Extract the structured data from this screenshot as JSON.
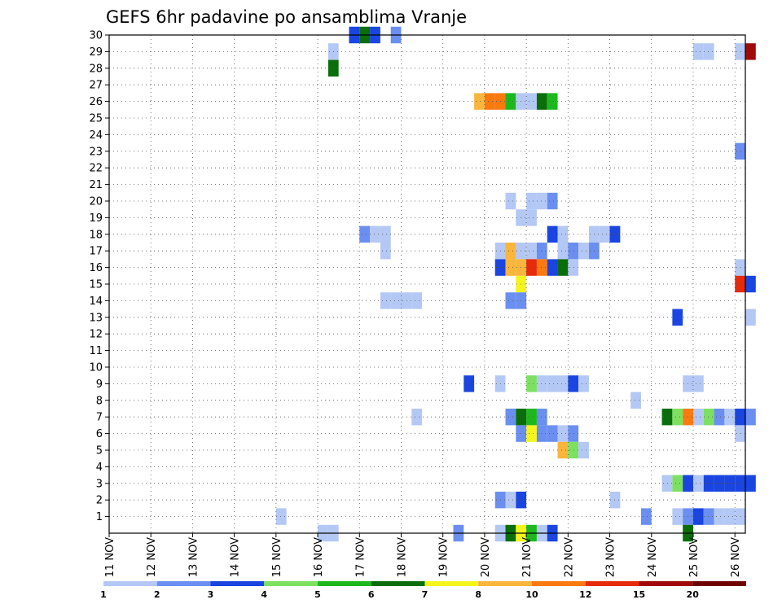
{
  "chart_data": {
    "type": "heatmap",
    "title": "GEFS 6hr padavine po ansamblima Vranje",
    "xlabel": "",
    "ylabel": "",
    "x_range_steps": [
      0,
      61
    ],
    "x_ticks": [
      {
        "label": "11 NOV",
        "step": 0
      },
      {
        "label": "12 NOV",
        "step": 4
      },
      {
        "label": "13 NOV",
        "step": 8
      },
      {
        "label": "14 NOV",
        "step": 12
      },
      {
        "label": "15 NOV",
        "step": 16
      },
      {
        "label": "16 NOV",
        "step": 20
      },
      {
        "label": "17 NOV",
        "step": 24
      },
      {
        "label": "18 NOV",
        "step": 28
      },
      {
        "label": "19 NOV",
        "step": 32
      },
      {
        "label": "20 NOV",
        "step": 36
      },
      {
        "label": "21 NOV",
        "step": 40
      },
      {
        "label": "22 NOV",
        "step": 44
      },
      {
        "label": "23 NOV",
        "step": 48
      },
      {
        "label": "24 NOV",
        "step": 52
      },
      {
        "label": "25 NOV",
        "step": 56
      },
      {
        "label": "26 NOV",
        "step": 60
      }
    ],
    "y_ticks": [
      "1",
      "2",
      "3",
      "4",
      "5",
      "6",
      "7",
      "8",
      "9",
      "10",
      "11",
      "12",
      "13",
      "14",
      "15",
      "16",
      "17",
      "18",
      "19",
      "20",
      "21",
      "22",
      "23",
      "24",
      "25",
      "26",
      "27",
      "28",
      "29",
      "30"
    ],
    "y_range": [
      0,
      30
    ],
    "grid": true,
    "colorbar": {
      "colors": [
        "#b4c8f5",
        "#6a8ff0",
        "#1a45e0",
        "#7de061",
        "#1db81d",
        "#0a6e0a",
        "#f5f51e",
        "#fab53c",
        "#fa7a10",
        "#e62a0a",
        "#a00a0a",
        "#6e0000"
      ],
      "labels": [
        "1",
        "2",
        "3",
        "4",
        "5",
        "6",
        "7",
        "8",
        "10",
        "12",
        "15",
        "20"
      ]
    },
    "cells": [
      [
        23.5,
        30,
        2
      ],
      [
        24.5,
        30,
        5
      ],
      [
        25.5,
        30,
        2
      ],
      [
        27.5,
        30,
        1
      ],
      [
        21.5,
        29,
        0
      ],
      [
        56.5,
        29,
        0
      ],
      [
        57.5,
        29,
        0
      ],
      [
        60.5,
        29,
        0
      ],
      [
        61.5,
        29,
        10
      ],
      [
        21.5,
        28,
        5
      ],
      [
        35.5,
        26,
        7
      ],
      [
        36.5,
        26,
        8
      ],
      [
        37.5,
        26,
        8
      ],
      [
        38.5,
        26,
        4
      ],
      [
        39.5,
        26,
        0
      ],
      [
        40.5,
        26,
        0
      ],
      [
        41.5,
        26,
        5
      ],
      [
        42.5,
        26,
        4
      ],
      [
        60.5,
        23,
        1
      ],
      [
        38.5,
        20,
        0
      ],
      [
        40.5,
        20,
        0
      ],
      [
        41.5,
        20,
        0
      ],
      [
        42.5,
        20,
        1
      ],
      [
        39.5,
        19,
        0
      ],
      [
        40.5,
        19,
        0
      ],
      [
        24.5,
        18,
        1
      ],
      [
        25.5,
        18,
        0
      ],
      [
        26.5,
        18,
        0
      ],
      [
        42.5,
        18,
        2
      ],
      [
        43.5,
        18,
        0
      ],
      [
        46.5,
        18,
        0
      ],
      [
        47.5,
        18,
        0
      ],
      [
        48.5,
        18,
        2
      ],
      [
        26.5,
        17,
        0
      ],
      [
        37.5,
        17,
        0
      ],
      [
        38.5,
        17,
        7
      ],
      [
        39.5,
        17,
        0
      ],
      [
        40.5,
        17,
        0
      ],
      [
        41.5,
        17,
        1
      ],
      [
        43.5,
        17,
        0
      ],
      [
        44.5,
        17,
        1
      ],
      [
        45.5,
        17,
        0
      ],
      [
        46.5,
        17,
        1
      ],
      [
        37.5,
        16,
        2
      ],
      [
        38.5,
        16,
        7
      ],
      [
        39.5,
        16,
        7
      ],
      [
        40.5,
        16,
        9
      ],
      [
        41.5,
        16,
        8
      ],
      [
        42.5,
        16,
        2
      ],
      [
        43.5,
        16,
        5
      ],
      [
        44.5,
        16,
        0
      ],
      [
        60.5,
        16,
        0
      ],
      [
        39.5,
        15,
        6
      ],
      [
        60.5,
        15,
        9
      ],
      [
        61.5,
        15,
        2
      ],
      [
        26.5,
        14,
        0
      ],
      [
        27.5,
        14,
        0
      ],
      [
        28.5,
        14,
        0
      ],
      [
        29.5,
        14,
        0
      ],
      [
        38.5,
        14,
        1
      ],
      [
        39.5,
        14,
        1
      ],
      [
        54.5,
        13,
        2
      ],
      [
        61.5,
        13,
        0
      ],
      [
        34.5,
        9,
        2
      ],
      [
        37.5,
        9,
        0
      ],
      [
        40.5,
        9,
        3
      ],
      [
        41.5,
        9,
        0
      ],
      [
        42.5,
        9,
        0
      ],
      [
        43.5,
        9,
        0
      ],
      [
        44.5,
        9,
        2
      ],
      [
        45.5,
        9,
        0
      ],
      [
        55.5,
        9,
        0
      ],
      [
        56.5,
        9,
        0
      ],
      [
        50.5,
        8,
        0
      ],
      [
        29.5,
        7,
        0
      ],
      [
        38.5,
        7,
        1
      ],
      [
        39.5,
        7,
        5
      ],
      [
        40.5,
        7,
        4
      ],
      [
        41.5,
        7,
        1
      ],
      [
        53.5,
        7,
        5
      ],
      [
        54.5,
        7,
        3
      ],
      [
        55.5,
        7,
        8
      ],
      [
        56.5,
        7,
        0
      ],
      [
        57.5,
        7,
        3
      ],
      [
        58.5,
        7,
        1
      ],
      [
        59.5,
        7,
        0
      ],
      [
        60.5,
        7,
        2
      ],
      [
        61.5,
        7,
        1
      ],
      [
        39.5,
        6,
        1
      ],
      [
        40.5,
        6,
        6
      ],
      [
        41.5,
        6,
        1
      ],
      [
        42.5,
        6,
        1
      ],
      [
        43.5,
        6,
        0
      ],
      [
        44.5,
        6,
        1
      ],
      [
        60.5,
        6,
        0
      ],
      [
        43.5,
        5,
        7
      ],
      [
        44.5,
        5,
        3
      ],
      [
        45.5,
        5,
        0
      ],
      [
        53.5,
        3,
        0
      ],
      [
        54.5,
        3,
        3
      ],
      [
        55.5,
        3,
        2
      ],
      [
        56.5,
        3,
        0
      ],
      [
        57.5,
        3,
        2
      ],
      [
        58.5,
        3,
        2
      ],
      [
        59.5,
        3,
        2
      ],
      [
        60.5,
        3,
        2
      ],
      [
        61.5,
        3,
        2
      ],
      [
        37.5,
        2,
        1
      ],
      [
        38.5,
        2,
        0
      ],
      [
        39.5,
        2,
        2
      ],
      [
        48.5,
        2,
        0
      ],
      [
        16.5,
        1,
        0
      ],
      [
        51.5,
        1,
        1
      ],
      [
        54.5,
        1,
        0
      ],
      [
        55.5,
        1,
        1
      ],
      [
        56.5,
        1,
        2
      ],
      [
        57.5,
        1,
        1
      ],
      [
        58.5,
        1,
        0
      ],
      [
        59.5,
        1,
        0
      ],
      [
        60.5,
        1,
        0
      ],
      [
        20.5,
        0,
        0
      ],
      [
        21.5,
        0,
        0
      ],
      [
        33.5,
        0,
        1
      ],
      [
        37.5,
        0,
        0
      ],
      [
        38.5,
        0,
        5
      ],
      [
        39.5,
        0,
        6
      ],
      [
        40.5,
        0,
        4
      ],
      [
        41.5,
        0,
        0
      ],
      [
        42.5,
        0,
        2
      ],
      [
        55.5,
        0,
        5
      ]
    ]
  }
}
